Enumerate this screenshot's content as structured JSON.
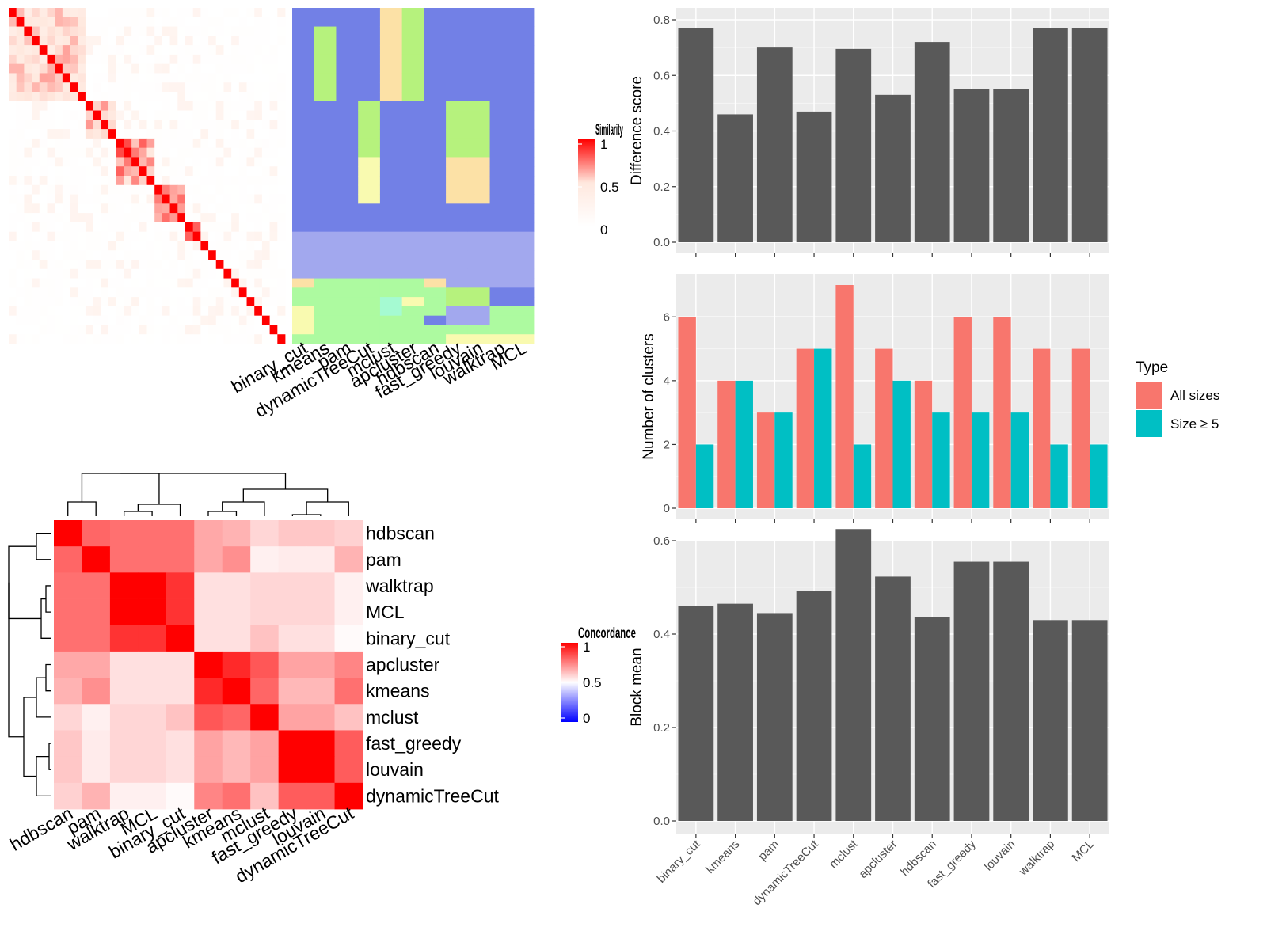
{
  "chart_data": [
    {
      "type": "heatmap",
      "id": "similarity-heatmap",
      "title": "",
      "legend_title": "Similarity",
      "legend_ticks": [
        "1",
        "0.5",
        "0"
      ],
      "legend_range": [
        0,
        1
      ],
      "cluster_label_columns": [
        "binary_cut",
        "kmeans",
        "pam",
        "dynamicTreeCut",
        "mclust",
        "apcluster",
        "hdbscan",
        "fast_greedy",
        "louvain",
        "walktrap",
        "MCL"
      ],
      "n_terms": 36,
      "blocks": [
        {
          "start": 0,
          "end": 10,
          "level": 0.65
        },
        {
          "start": 10,
          "end": 14,
          "level": 0.85
        },
        {
          "start": 14,
          "end": 19,
          "level": 0.9
        },
        {
          "start": 19,
          "end": 23,
          "level": 0.85
        },
        {
          "start": 23,
          "end": 25,
          "level": 0.85
        }
      ],
      "colors": [
        "#7280E6",
        "#B6F27D",
        "#FCE1A6",
        "#A2A8EE",
        "#ADFAA0",
        "#F9FAB0",
        "#A5FAD2"
      ]
    },
    {
      "type": "heatmap",
      "id": "concordance-heatmap",
      "title": "",
      "legend_title": "Concordance",
      "legend_ticks": [
        "1",
        "0.5",
        "0"
      ],
      "legend_range": [
        0,
        1
      ],
      "rows": [
        "hdbscan",
        "pam",
        "walktrap",
        "MCL",
        "binary_cut",
        "apcluster",
        "kmeans",
        "mclust",
        "fast_greedy",
        "louvain",
        "dynamicTreeCut"
      ],
      "columns": [
        "hdbscan",
        "pam",
        "walktrap",
        "MCL",
        "binary_cut",
        "apcluster",
        "kmeans",
        "mclust",
        "fast_greedy",
        "louvain",
        "dynamicTreeCut"
      ],
      "values": [
        [
          1.0,
          0.8,
          0.78,
          0.78,
          0.78,
          0.67,
          0.65,
          0.58,
          0.61,
          0.61,
          0.59
        ],
        [
          0.8,
          1.0,
          0.78,
          0.78,
          0.78,
          0.67,
          0.72,
          0.53,
          0.54,
          0.54,
          0.65
        ],
        [
          0.78,
          0.78,
          1.0,
          1.0,
          0.9,
          0.56,
          0.56,
          0.58,
          0.58,
          0.58,
          0.53
        ],
        [
          0.78,
          0.78,
          1.0,
          1.0,
          0.9,
          0.56,
          0.56,
          0.58,
          0.58,
          0.58,
          0.53
        ],
        [
          0.78,
          0.78,
          0.9,
          0.9,
          1.0,
          0.56,
          0.56,
          0.62,
          0.56,
          0.56,
          0.51
        ],
        [
          0.67,
          0.67,
          0.56,
          0.56,
          0.56,
          1.0,
          0.92,
          0.83,
          0.68,
          0.68,
          0.74
        ],
        [
          0.65,
          0.72,
          0.56,
          0.56,
          0.56,
          0.92,
          1.0,
          0.8,
          0.64,
          0.64,
          0.78
        ],
        [
          0.58,
          0.53,
          0.58,
          0.58,
          0.62,
          0.83,
          0.8,
          1.0,
          0.68,
          0.68,
          0.62
        ],
        [
          0.61,
          0.54,
          0.58,
          0.58,
          0.56,
          0.68,
          0.64,
          0.68,
          1.0,
          1.0,
          0.82
        ],
        [
          0.61,
          0.54,
          0.58,
          0.58,
          0.56,
          0.68,
          0.64,
          0.68,
          1.0,
          1.0,
          0.82
        ],
        [
          0.59,
          0.65,
          0.53,
          0.53,
          0.51,
          0.74,
          0.78,
          0.62,
          0.82,
          0.82,
          1.0
        ]
      ]
    },
    {
      "type": "bar",
      "id": "difference-score",
      "title": "",
      "xlabel": "",
      "ylabel": "Difference score",
      "categories": [
        "binary_cut",
        "kmeans",
        "pam",
        "dynamicTreeCut",
        "mclust",
        "apcluster",
        "hdbscan",
        "fast_greedy",
        "louvain",
        "walktrap",
        "MCL"
      ],
      "values": [
        0.77,
        0.46,
        0.7,
        0.47,
        0.695,
        0.53,
        0.72,
        0.55,
        0.55,
        0.77,
        0.77
      ],
      "ylim": [
        0,
        0.8
      ],
      "yticks": [
        "0.0",
        "0.2",
        "0.4",
        "0.6",
        "0.8"
      ],
      "color": "#595959",
      "grid": true
    },
    {
      "type": "bar",
      "id": "number-of-clusters",
      "title": "",
      "xlabel": "",
      "ylabel": "Number of clusters",
      "categories": [
        "binary_cut",
        "kmeans",
        "pam",
        "dynamicTreeCut",
        "mclust",
        "apcluster",
        "hdbscan",
        "fast_greedy",
        "louvain",
        "walktrap",
        "MCL"
      ],
      "series": [
        {
          "name": "All sizes",
          "color": "#F8766D",
          "values": [
            6,
            4,
            3,
            5,
            7,
            5,
            4,
            6,
            6,
            5,
            5
          ]
        },
        {
          "name": "Size ≥ 5",
          "color": "#00BFC4",
          "values": [
            2,
            4,
            3,
            5,
            2,
            4,
            3,
            3,
            3,
            2,
            2
          ]
        }
      ],
      "ylim": [
        0,
        7
      ],
      "yticks": [
        "0",
        "2",
        "4",
        "6"
      ],
      "legend_title": "Type",
      "legend_position": "right",
      "grid": true
    },
    {
      "type": "bar",
      "id": "block-mean",
      "title": "",
      "xlabel": "",
      "ylabel": "Block mean",
      "categories": [
        "binary_cut",
        "kmeans",
        "pam",
        "dynamicTreeCut",
        "mclust",
        "apcluster",
        "hdbscan",
        "fast_greedy",
        "louvain",
        "walktrap",
        "MCL"
      ],
      "values": [
        0.46,
        0.465,
        0.445,
        0.493,
        0.625,
        0.523,
        0.437,
        0.555,
        0.555,
        0.43,
        0.43
      ],
      "ylim": [
        0,
        0.6
      ],
      "yticks": [
        "0.0",
        "0.2",
        "0.4",
        "0.6"
      ],
      "color": "#595959",
      "grid": true
    }
  ]
}
